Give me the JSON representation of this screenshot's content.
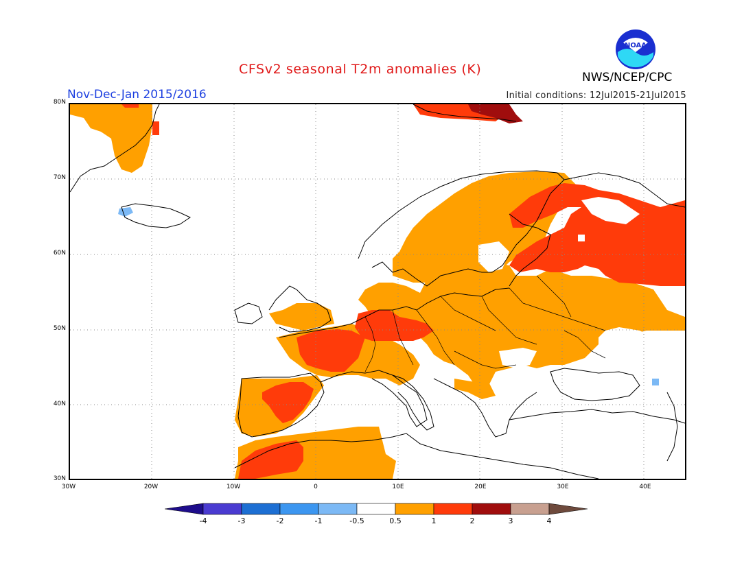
{
  "header": {
    "title": "CFSv2 seasonal T2m anomalies (K)",
    "season": "Nov-Dec-Jan 2015/2016",
    "initial_conditions": "Initial conditions: 12Jul2015-21Jul2015",
    "agency": "NWS/NCEP/CPC",
    "logo_text": "NOAA"
  },
  "map": {
    "lon_range": [
      -30,
      45
    ],
    "lat_range": [
      30,
      80
    ],
    "lat_ticks": [
      "80N",
      "70N",
      "60N",
      "50N",
      "40N",
      "30N"
    ],
    "lon_ticks": [
      "30W",
      "20W",
      "10W",
      "0",
      "10E",
      "20E",
      "30E",
      "40E"
    ],
    "grid": "dotted"
  },
  "colorbar": {
    "labels": [
      "-4",
      "-3",
      "-2",
      "-1",
      "-0.5",
      "0.5",
      "1",
      "2",
      "3",
      "4"
    ],
    "colors": [
      "#1e0d8c",
      "#4a3bd1",
      "#1d6fd3",
      "#3c96f0",
      "#7cb9f5",
      "#ffffff",
      "#ffa000",
      "#ff3b0a",
      "#a00d0d",
      "#c8a090",
      "#6e4a3c"
    ]
  },
  "chart_data": {
    "type": "heatmap",
    "title": "CFSv2 seasonal T2m anomalies (K)",
    "units": "K",
    "domain": {
      "lon": [
        -30,
        45
      ],
      "lat": [
        30,
        80
      ]
    },
    "anomaly_regions": [
      {
        "level": "0.5 to 1",
        "color": "#ffa000",
        "regions": [
          "Scandinavia",
          "Baltic states",
          "Central Europe",
          "Eastern Europe",
          "Western Russia",
          "British Isles (southern)",
          "Iberian Peninsula",
          "North Africa",
          "Balkans (north)",
          "Eastern Greenland"
        ]
      },
      {
        "level": "1 to 2",
        "color": "#ff3b0a",
        "regions": [
          "France",
          "Germany",
          "Czech Republic",
          "Northwest Russia / Finland",
          "Western Iberia",
          "Morocco",
          "Svalbard",
          "Eastern Greenland coast"
        ]
      },
      {
        "level": "2 to 3",
        "color": "#a00d0d",
        "regions": [
          "Svalbard"
        ]
      },
      {
        "level": "-1 to -0.5",
        "color": "#7cb9f5",
        "regions": [
          "Western Iceland coast",
          "Caucasus (small)"
        ]
      },
      {
        "level": "-0.5 to 0.5",
        "color": "#ffffff",
        "regions": [
          "Mediterranean",
          "Italy",
          "Greece",
          "Turkey",
          "Iceland",
          "Black Sea region"
        ]
      }
    ]
  }
}
